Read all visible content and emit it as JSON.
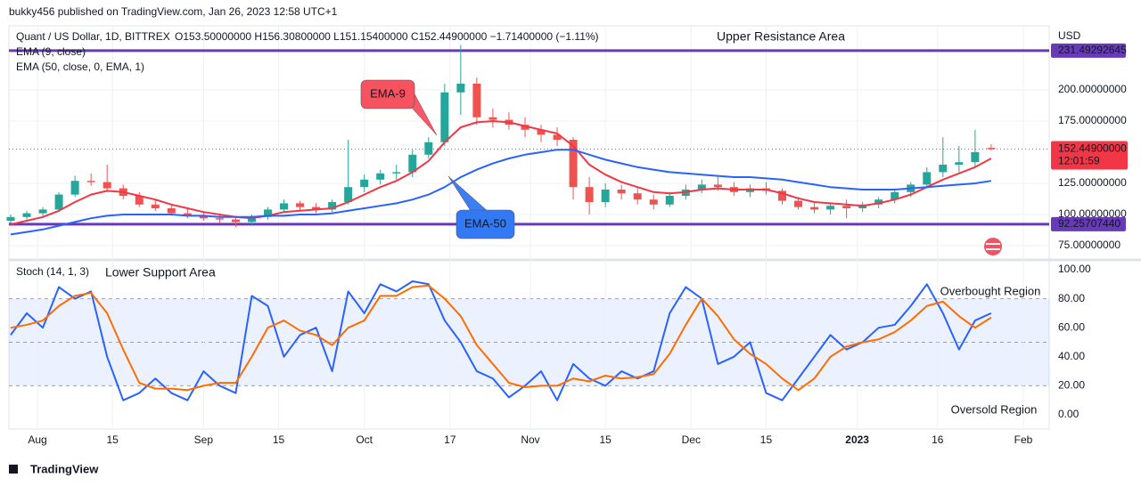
{
  "header": {
    "publisher": "bukky456 published on TradingView.com, Jan 26, 2023 12:58 UTC+1"
  },
  "footer": {
    "brand": "TradingView"
  },
  "chart_data": [
    {
      "type": "candlestick",
      "symbol": "Quant / US Dollar, 1D, BITTREX",
      "quote": "O153.50000000 H156.30800000 L151.15400000 C152.44900000 −1.71400000 (−1.11%)",
      "currency": "USD",
      "x": [
        -5,
        -2,
        1,
        4,
        7,
        10,
        13,
        16,
        19,
        22,
        25,
        28,
        31,
        34,
        37,
        40,
        43,
        46,
        49,
        52,
        55,
        58,
        61,
        64,
        67,
        70,
        73,
        76,
        79,
        82,
        85,
        88,
        91,
        94,
        97,
        100,
        103,
        106,
        109,
        112,
        115,
        118,
        121,
        124,
        127,
        130,
        133,
        136,
        139,
        142,
        145,
        148,
        151,
        154,
        157,
        160,
        163,
        166,
        169,
        172,
        175,
        178
      ],
      "open": [
        95,
        98,
        101,
        104,
        116,
        127,
        126,
        121,
        115,
        108,
        105,
        101,
        99,
        97,
        96,
        94,
        98,
        104,
        109,
        106,
        104,
        110,
        122,
        128,
        133,
        134,
        148,
        158,
        198,
        205,
        178,
        176,
        172,
        168,
        164,
        160,
        122,
        110,
        120,
        117,
        112,
        108,
        115,
        120,
        124,
        122,
        118,
        121,
        119,
        111,
        106,
        104,
        107,
        105,
        108,
        112,
        118,
        124,
        134,
        140,
        142,
        153.5
      ],
      "high": [
        100,
        103,
        106,
        118,
        131,
        133,
        140,
        124,
        118,
        112,
        108,
        105,
        102,
        100,
        99,
        100,
        106,
        112,
        111,
        109,
        112,
        160,
        132,
        136,
        140,
        152,
        162,
        205,
        236,
        210,
        185,
        182,
        178,
        172,
        170,
        162,
        130,
        125,
        124,
        121,
        116,
        118,
        124,
        128,
        131,
        126,
        124,
        126,
        121,
        114,
        110,
        109,
        112,
        110,
        114,
        120,
        126,
        138,
        162,
        155,
        168,
        156.308
      ],
      "low": [
        93,
        96,
        99,
        102,
        114,
        123,
        118,
        112,
        106,
        103,
        99,
        97,
        95,
        93,
        90,
        92,
        96,
        102,
        103,
        101,
        102,
        108,
        118,
        124,
        128,
        130,
        145,
        155,
        180,
        172,
        170,
        168,
        162,
        158,
        155,
        112,
        100,
        106,
        112,
        108,
        104,
        106,
        112,
        117,
        119,
        115,
        114,
        116,
        108,
        104,
        101,
        100,
        97,
        102,
        105,
        109,
        114,
        121,
        130,
        134,
        138,
        151.154
      ],
      "close": [
        98,
        101,
        104,
        116,
        127,
        126,
        121,
        115,
        108,
        105,
        101,
        99,
        97,
        96,
        94,
        98,
        104,
        109,
        106,
        104,
        110,
        122,
        128,
        133,
        134,
        148,
        158,
        198,
        205,
        178,
        176,
        172,
        168,
        164,
        160,
        122,
        110,
        120,
        117,
        112,
        108,
        115,
        120,
        124,
        122,
        118,
        121,
        119,
        111,
        106,
        104,
        107,
        105,
        108,
        112,
        118,
        124,
        134,
        140,
        142,
        150,
        152.449
      ],
      "up_color": "#26a69a",
      "down_color": "#ef5350",
      "series": [
        {
          "name": "EMA (9, close)",
          "color": "#f23645",
          "values": [
            92,
            95,
            98,
            103,
            110,
            116,
            119,
            118,
            115,
            112,
            108,
            105,
            102,
            100,
            98,
            97,
            99,
            102,
            103,
            104,
            105,
            110,
            116,
            122,
            127,
            134,
            143,
            158,
            170,
            174,
            175,
            174,
            171,
            168,
            165,
            155,
            140,
            132,
            126,
            122,
            118,
            117,
            118,
            120,
            121,
            120,
            120,
            120,
            117,
            113,
            110,
            109,
            108,
            107,
            109,
            112,
            116,
            122,
            128,
            133,
            138,
            145
          ]
        },
        {
          "name": "EMA (50, close, 0, EMA, 1)",
          "color": "#2962ff",
          "values": [
            84,
            86,
            88,
            91,
            94,
            97,
            99,
            100,
            100,
            100,
            100,
            99,
            99,
            98,
            98,
            98,
            99,
            99,
            100,
            100,
            101,
            103,
            105,
            107,
            109,
            112,
            116,
            122,
            130,
            136,
            141,
            145,
            148,
            150,
            152,
            152,
            148,
            144,
            141,
            138,
            136,
            134,
            133,
            132,
            131,
            130,
            130,
            129,
            128,
            126,
            124,
            122,
            121,
            120,
            120,
            120,
            121,
            122,
            123,
            124,
            125,
            127
          ]
        }
      ],
      "levels": [
        {
          "name": "Upper Resistance Area",
          "value": 231.49292645,
          "label": "231.49292645"
        },
        {
          "name": "Lower Support Area",
          "value": 92.2570744,
          "label": "92.25707440"
        }
      ],
      "level_color": "#673ab7",
      "last_price": {
        "value": 152.449,
        "label": "152.44900000",
        "countdown": "12:01:59",
        "color": "#f23645"
      },
      "annotations": [
        {
          "text": "EMA-9",
          "color": "#f7525f"
        },
        {
          "text": "EMA-50",
          "color": "#3179f5"
        }
      ],
      "xlim": [
        -5.33,
        188.83
      ],
      "ylim": [
        65,
        250.7
      ],
      "yticks": [
        {
          "value": 200,
          "label": "200.00000000"
        },
        {
          "value": 175,
          "label": "175.00000000"
        },
        {
          "value": 125,
          "label": "125.00000000"
        },
        {
          "value": 100,
          "label": "100.00000000"
        },
        {
          "value": 75,
          "label": "75.00000000"
        }
      ],
      "grid": true
    },
    {
      "type": "line",
      "title": "Stoch (14, 1, 3)",
      "x": [
        -5,
        -2,
        1,
        4,
        7,
        10,
        13,
        16,
        19,
        22,
        25,
        28,
        31,
        34,
        37,
        40,
        43,
        46,
        49,
        52,
        55,
        58,
        61,
        64,
        67,
        70,
        73,
        76,
        79,
        82,
        85,
        88,
        91,
        94,
        97,
        100,
        103,
        106,
        109,
        112,
        115,
        118,
        121,
        124,
        127,
        130,
        133,
        136,
        139,
        142,
        145,
        148,
        151,
        154,
        157,
        160,
        163,
        166,
        169,
        172,
        175,
        178
      ],
      "series": [
        {
          "color": "#2962ff",
          "values": [
            55,
            70,
            60,
            88,
            80,
            85,
            40,
            10,
            15,
            25,
            15,
            10,
            30,
            20,
            15,
            82,
            75,
            40,
            55,
            60,
            30,
            85,
            70,
            90,
            85,
            92,
            90,
            65,
            50,
            30,
            25,
            12,
            20,
            30,
            10,
            35,
            25,
            20,
            30,
            25,
            30,
            70,
            88,
            80,
            35,
            40,
            50,
            15,
            10,
            25,
            40,
            55,
            45,
            50,
            60,
            62,
            75,
            90,
            70,
            45,
            65,
            70
          ]
        },
        {
          "color": "#ff6d00",
          "values": [
            60,
            62,
            65,
            75,
            82,
            84,
            70,
            45,
            22,
            18,
            18,
            17,
            20,
            22,
            22,
            40,
            60,
            65,
            58,
            55,
            48,
            60,
            65,
            82,
            82,
            88,
            89,
            80,
            68,
            48,
            35,
            22,
            19,
            20,
            20,
            25,
            23,
            27,
            25,
            26,
            28,
            42,
            62,
            80,
            68,
            52,
            42,
            35,
            25,
            17,
            25,
            40,
            47,
            50,
            52,
            57,
            65,
            75,
            78,
            68,
            60,
            67
          ]
        }
      ],
      "levels": [
        80,
        50,
        20
      ],
      "band_color": "#2962ff",
      "annotations": [
        {
          "text": "Overbought Region"
        },
        {
          "text": "Oversold Region"
        }
      ],
      "xlim": [
        -5.33,
        188.83
      ],
      "xticks": [
        {
          "value": 0,
          "label": "Aug"
        },
        {
          "value": 14,
          "label": "15"
        },
        {
          "value": 31,
          "label": "Sep"
        },
        {
          "value": 45,
          "label": "15"
        },
        {
          "value": 61,
          "label": "Oct"
        },
        {
          "value": 77,
          "label": "17"
        },
        {
          "value": 92,
          "label": "Nov"
        },
        {
          "value": 106,
          "label": "15"
        },
        {
          "value": 122,
          "label": "Dec"
        },
        {
          "value": 136,
          "label": "15"
        },
        {
          "value": 153,
          "label": "2023"
        },
        {
          "value": 168,
          "label": "16"
        },
        {
          "value": 184,
          "label": "Feb"
        }
      ],
      "ylim": [
        -8.6,
        104.9
      ],
      "yticks": [
        {
          "value": 100,
          "label": "100.00"
        },
        {
          "value": 80,
          "label": "80.00"
        },
        {
          "value": 60,
          "label": "60.00"
        },
        {
          "value": 40,
          "label": "40.00"
        },
        {
          "value": 20,
          "label": "20.00"
        },
        {
          "value": 0,
          "label": "0.00"
        }
      ],
      "grid": true
    }
  ]
}
